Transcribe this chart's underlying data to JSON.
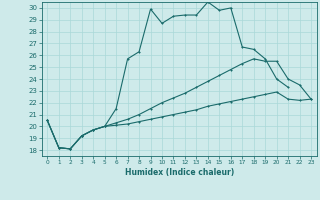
{
  "xlabel": "Humidex (Indice chaleur)",
  "bg_color": "#ceeaea",
  "grid_color": "#b0d8d8",
  "line_color": "#1a6b6b",
  "xlim": [
    -0.5,
    23.5
  ],
  "ylim": [
    17.5,
    30.5
  ],
  "xticks": [
    0,
    1,
    2,
    3,
    4,
    5,
    6,
    7,
    8,
    9,
    10,
    11,
    12,
    13,
    14,
    15,
    16,
    17,
    18,
    19,
    20,
    21,
    22,
    23
  ],
  "yticks": [
    18,
    19,
    20,
    21,
    22,
    23,
    24,
    25,
    26,
    27,
    28,
    29,
    30
  ],
  "curve1_x": [
    0,
    1,
    2,
    3,
    4,
    5,
    6,
    7,
    8,
    9,
    10,
    11,
    12,
    13,
    14,
    15,
    16,
    17,
    18,
    19,
    20,
    21
  ],
  "curve1_y": [
    20.5,
    18.2,
    18.1,
    19.2,
    19.7,
    20.0,
    21.5,
    25.7,
    26.3,
    29.9,
    28.7,
    29.3,
    29.4,
    29.4,
    30.5,
    29.8,
    30.0,
    26.7,
    26.5,
    25.7,
    24.0,
    23.3
  ],
  "curve2_x": [
    0,
    1,
    2,
    3,
    4,
    5,
    6,
    7,
    8,
    9,
    10,
    11,
    12,
    13,
    14,
    15,
    16,
    17,
    18,
    19,
    20,
    21,
    22,
    23
  ],
  "curve2_y": [
    20.5,
    18.2,
    18.1,
    19.2,
    19.7,
    20.0,
    20.3,
    20.6,
    21.0,
    21.5,
    22.0,
    22.4,
    22.8,
    23.3,
    23.8,
    24.3,
    24.8,
    25.3,
    25.7,
    25.5,
    25.5,
    24.0,
    23.5,
    22.3
  ],
  "curve3_x": [
    0,
    1,
    2,
    3,
    4,
    5,
    6,
    7,
    8,
    9,
    10,
    11,
    12,
    13,
    14,
    15,
    16,
    17,
    18,
    19,
    20,
    21,
    22,
    23
  ],
  "curve3_y": [
    20.5,
    18.2,
    18.1,
    19.2,
    19.7,
    20.0,
    20.1,
    20.2,
    20.4,
    20.6,
    20.8,
    21.0,
    21.2,
    21.4,
    21.7,
    21.9,
    22.1,
    22.3,
    22.5,
    22.7,
    22.9,
    22.3,
    22.2,
    22.3
  ]
}
